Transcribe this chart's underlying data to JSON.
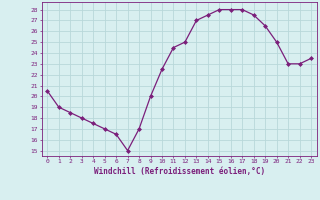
{
  "x": [
    0,
    1,
    2,
    3,
    4,
    5,
    6,
    7,
    8,
    9,
    10,
    11,
    12,
    13,
    14,
    15,
    16,
    17,
    18,
    19,
    20,
    21,
    22,
    23
  ],
  "y": [
    20.5,
    19.0,
    18.5,
    18.0,
    17.5,
    17.0,
    16.5,
    15.0,
    17.0,
    20.0,
    22.5,
    24.5,
    25.0,
    27.0,
    27.5,
    28.0,
    28.0,
    28.0,
    27.5,
    26.5,
    25.0,
    23.0,
    23.0,
    23.5
  ],
  "line_color": "#7B1F7B",
  "marker": "D",
  "marker_size": 2.0,
  "bg_color": "#d8eff0",
  "grid_color": "#b8d8da",
  "xlabel": "Windchill (Refroidissement éolien,°C)",
  "ylabel_ticks": [
    15,
    16,
    17,
    18,
    19,
    20,
    21,
    22,
    23,
    24,
    25,
    26,
    27,
    28
  ],
  "ylim": [
    14.5,
    28.7
  ],
  "xlim": [
    -0.5,
    23.5
  ],
  "tick_color": "#7B1F7B",
  "label_color": "#7B1F7B",
  "spine_color": "#7B1F7B"
}
